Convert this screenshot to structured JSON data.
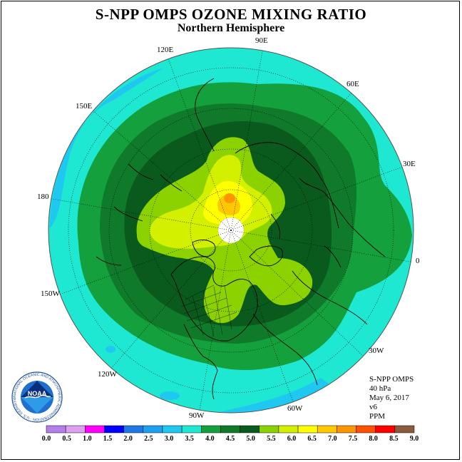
{
  "header": {
    "title": "S-NPP OMPS OZONE MIXING RATIO",
    "subtitle": "Northern Hemisphere"
  },
  "longitude_labels": {
    "e120": "120E",
    "e90": "90E",
    "e60": "60E",
    "e150": "150E",
    "e30": "30E",
    "l180": "180",
    "l0": "0",
    "w150": "150W",
    "w30": "30W",
    "w120": "120W",
    "w60": "60W",
    "w90": "90W"
  },
  "info": {
    "instrument": "S-NPP OMPS",
    "level": "40 hPa",
    "date": "May 6, 2017",
    "version": "v6",
    "units": "PPM"
  },
  "logo": {
    "text": "NOAA",
    "ring_text": "NATIONAL OCEANIC AND ATMOSPHERIC ADMINISTRATION · U.S. DEPARTMENT OF COMMERCE"
  },
  "colorbar": {
    "ticks": [
      "0.0",
      "0.5",
      "1.0",
      "1.5",
      "2.0",
      "2.5",
      "3.0",
      "3.5",
      "4.0",
      "4.5",
      "5.0",
      "5.5",
      "6.0",
      "6.5",
      "7.0",
      "7.5",
      "8.0",
      "8.5",
      "9.0"
    ],
    "colors": [
      "#b47fe9",
      "#dda0f0",
      "#ff00ff",
      "#0000ff",
      "#1e78e6",
      "#1ea0f0",
      "#1ec8f0",
      "#1ee8d2",
      "#14a03c",
      "#0e7a2a",
      "#0a5a1e",
      "#8cd200",
      "#d2f000",
      "#ffff00",
      "#ffc800",
      "#ff9600",
      "#ff5000",
      "#ff0000",
      "#8c5a3c"
    ]
  },
  "map_colors": {
    "c35": "#1ec8f0",
    "c40": "#1ee8d2",
    "c45": "#14a03c",
    "c50": "#0e7a2a",
    "c55": "#0a5a1e",
    "c60": "#8cd200",
    "c65": "#d2f000",
    "c70": "#ffff00",
    "c75": "#ffc800",
    "c80": "#ff9600",
    "nodata": "#ffffff"
  }
}
